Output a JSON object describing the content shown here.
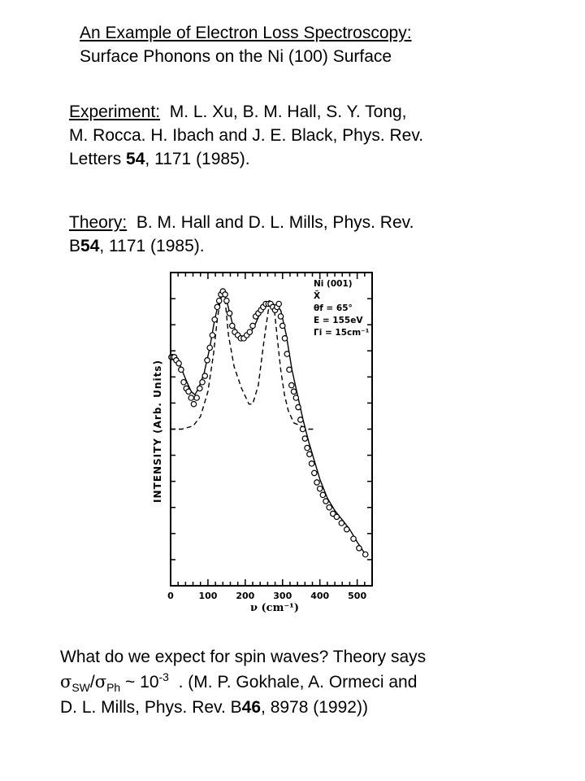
{
  "title": {
    "line1": "An Example of Electron Loss Spectroscopy:",
    "line2": "Surface Phonons on the Ni (100) Surface"
  },
  "experiment": {
    "label": "Experiment:",
    "line1_rest": "  M. L. Xu, B. M. Hall, S. Y. Tong,",
    "line2": "M. Rocca. H. Ibach and J. E. Black, Phys. Rev.",
    "line3_pre": "Letters ",
    "line3_bold": "54",
    "line3_post": ", 1171 (1985)."
  },
  "theory": {
    "label": "Theory:",
    "line1_rest": "  B. M. Hall and D. L. Mills, Phys. Rev.",
    "line2_pre": "B",
    "line2_bold": "54",
    "line2_post": ", 1171 (1985)."
  },
  "chart_data": {
    "type": "line",
    "ylabel": "INTENSITY  (Arb. Units)",
    "xlabel": "ν (cm⁻¹)",
    "xlim": [
      0,
      540
    ],
    "xticks": [
      "0",
      "100",
      "200",
      "300",
      "400",
      "500"
    ],
    "legend_lines": [
      "Ni (001)",
      "X̄",
      "θf = 65°",
      "E = 155eV",
      "Γi = 15cm⁻¹"
    ],
    "legend_placement": "top-right",
    "series": [
      {
        "style": "circles",
        "x": [
          2,
          6,
          10,
          15,
          22,
          28,
          35,
          42,
          48,
          55,
          62,
          70,
          78,
          85,
          92,
          98,
          105,
          112,
          118,
          125,
          130,
          135,
          140,
          146,
          150,
          158,
          165,
          172,
          180,
          188,
          196,
          204,
          212,
          220,
          228,
          235,
          242,
          248,
          255,
          262,
          268,
          274,
          280,
          285,
          290,
          295,
          300,
          306,
          312,
          318,
          324,
          330,
          336,
          342,
          348,
          354,
          360,
          366,
          372,
          378,
          385,
          392,
          400,
          408,
          416,
          425,
          435,
          445,
          458,
          472,
          490,
          505,
          522
        ],
        "y": [
          0.73,
          0.73,
          0.73,
          0.72,
          0.71,
          0.69,
          0.65,
          0.63,
          0.62,
          0.6,
          0.58,
          0.6,
          0.63,
          0.65,
          0.67,
          0.72,
          0.76,
          0.8,
          0.85,
          0.89,
          0.91,
          0.93,
          0.94,
          0.93,
          0.91,
          0.87,
          0.83,
          0.81,
          0.8,
          0.79,
          0.79,
          0.8,
          0.81,
          0.83,
          0.86,
          0.87,
          0.88,
          0.89,
          0.9,
          0.9,
          0.9,
          0.89,
          0.88,
          0.89,
          0.9,
          0.86,
          0.83,
          0.79,
          0.74,
          0.69,
          0.64,
          0.62,
          0.6,
          0.57,
          0.53,
          0.5,
          0.47,
          0.44,
          0.42,
          0.39,
          0.36,
          0.33,
          0.31,
          0.29,
          0.27,
          0.25,
          0.23,
          0.22,
          0.2,
          0.18,
          0.15,
          0.12,
          0.1
        ]
      },
      {
        "style": "solid",
        "x": [
          0,
          20,
          40,
          55,
          65,
          75,
          90,
          105,
          118,
          130,
          140,
          150,
          165,
          180,
          195,
          210,
          225,
          240,
          255,
          265,
          275,
          285,
          295,
          310,
          325,
          340,
          355,
          370,
          385,
          400,
          420,
          440,
          460,
          480,
          500,
          522
        ],
        "y": [
          0.74,
          0.72,
          0.66,
          0.62,
          0.61,
          0.63,
          0.68,
          0.76,
          0.85,
          0.91,
          0.94,
          0.91,
          0.84,
          0.8,
          0.79,
          0.8,
          0.83,
          0.87,
          0.9,
          0.91,
          0.9,
          0.89,
          0.88,
          0.8,
          0.69,
          0.61,
          0.53,
          0.46,
          0.4,
          0.34,
          0.28,
          0.24,
          0.21,
          0.18,
          0.14,
          0.1
        ]
      },
      {
        "style": "dashed",
        "x": [
          0,
          30,
          60,
          80,
          100,
          115,
          125,
          133,
          140,
          147,
          155,
          170,
          190,
          210,
          220,
          235,
          250,
          262,
          270,
          278,
          285,
          295,
          305,
          315,
          330,
          350,
          370,
          390
        ],
        "y": [
          0.5,
          0.5,
          0.51,
          0.54,
          0.62,
          0.74,
          0.85,
          0.91,
          0.94,
          0.9,
          0.8,
          0.7,
          0.63,
          0.58,
          0.58,
          0.64,
          0.78,
          0.88,
          0.91,
          0.88,
          0.8,
          0.69,
          0.61,
          0.56,
          0.52,
          0.51,
          0.5,
          0.5
        ]
      }
    ]
  },
  "bottom": {
    "line1": "What do we expect for spin waves? Theory says",
    "sigma": "σ",
    "sub_sw": "SW",
    "slash": "/",
    "sub_ph": "Ph",
    "approx": " ~ 10",
    "exp": "-3",
    "line2_rest": "  . (M. P. Gokhale, A. Ormeci and",
    "line3_pre": "D. L. Mills, Phys. Rev. B",
    "line3_bold": "46",
    "line3_post": ", 8978 (1992))"
  }
}
